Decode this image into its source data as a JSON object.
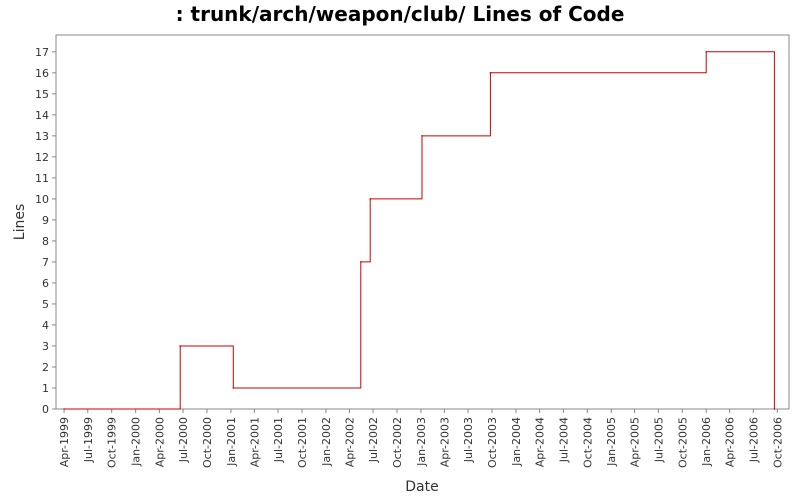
{
  "chart_data": {
    "type": "line",
    "title": ": trunk/arch/weapon/club/ Lines of Code",
    "xlabel": "Date",
    "ylabel": "Lines",
    "ylim": [
      0,
      17.8
    ],
    "xlim": [
      "1999-03-01",
      "2006-11-15"
    ],
    "step": true,
    "grid": false,
    "legend": "none",
    "y_ticks": [
      0,
      1,
      2,
      3,
      4,
      5,
      6,
      7,
      8,
      9,
      10,
      11,
      12,
      13,
      14,
      15,
      16,
      17
    ],
    "x_ticks": [
      {
        "date": "1999-04-01",
        "label": "Apr-1999"
      },
      {
        "date": "1999-07-01",
        "label": "Jul-1999"
      },
      {
        "date": "1999-10-01",
        "label": "Oct-1999"
      },
      {
        "date": "2000-01-01",
        "label": "Jan-2000"
      },
      {
        "date": "2000-04-01",
        "label": "Apr-2000"
      },
      {
        "date": "2000-07-01",
        "label": "Jul-2000"
      },
      {
        "date": "2000-10-01",
        "label": "Oct-2000"
      },
      {
        "date": "2001-01-01",
        "label": "Jan-2001"
      },
      {
        "date": "2001-04-01",
        "label": "Apr-2001"
      },
      {
        "date": "2001-07-01",
        "label": "Jul-2001"
      },
      {
        "date": "2001-10-01",
        "label": "Oct-2001"
      },
      {
        "date": "2002-01-01",
        "label": "Jan-2002"
      },
      {
        "date": "2002-04-01",
        "label": "Apr-2002"
      },
      {
        "date": "2002-07-01",
        "label": "Jul-2002"
      },
      {
        "date": "2002-10-01",
        "label": "Oct-2002"
      },
      {
        "date": "2003-01-01",
        "label": "Jan-2003"
      },
      {
        "date": "2003-04-01",
        "label": "Apr-2003"
      },
      {
        "date": "2003-07-01",
        "label": "Jul-2003"
      },
      {
        "date": "2003-10-01",
        "label": "Oct-2003"
      },
      {
        "date": "2004-01-01",
        "label": "Jan-2004"
      },
      {
        "date": "2004-04-01",
        "label": "Apr-2004"
      },
      {
        "date": "2004-07-01",
        "label": "Jul-2004"
      },
      {
        "date": "2004-10-01",
        "label": "Oct-2004"
      },
      {
        "date": "2005-01-01",
        "label": "Jan-2005"
      },
      {
        "date": "2005-04-01",
        "label": "Apr-2005"
      },
      {
        "date": "2005-07-01",
        "label": "Jul-2005"
      },
      {
        "date": "2005-10-01",
        "label": "Oct-2005"
      },
      {
        "date": "2006-01-01",
        "label": "Jan-2006"
      },
      {
        "date": "2006-04-01",
        "label": "Apr-2006"
      },
      {
        "date": "2006-07-01",
        "label": "Jul-2006"
      },
      {
        "date": "2006-10-01",
        "label": "Oct-2006"
      }
    ],
    "series": [
      {
        "color": "#cc0000",
        "points": [
          {
            "x": "1999-04-01",
            "y": 0
          },
          {
            "x": "2000-06-20",
            "y": 3
          },
          {
            "x": "2001-01-10",
            "y": 1
          },
          {
            "x": "2002-05-15",
            "y": 7
          },
          {
            "x": "2002-06-20",
            "y": 10
          },
          {
            "x": "2003-01-05",
            "y": 13
          },
          {
            "x": "2003-09-25",
            "y": 16
          },
          {
            "x": "2006-01-01",
            "y": 17
          },
          {
            "x": "2006-09-20",
            "y": 0
          }
        ]
      }
    ]
  }
}
